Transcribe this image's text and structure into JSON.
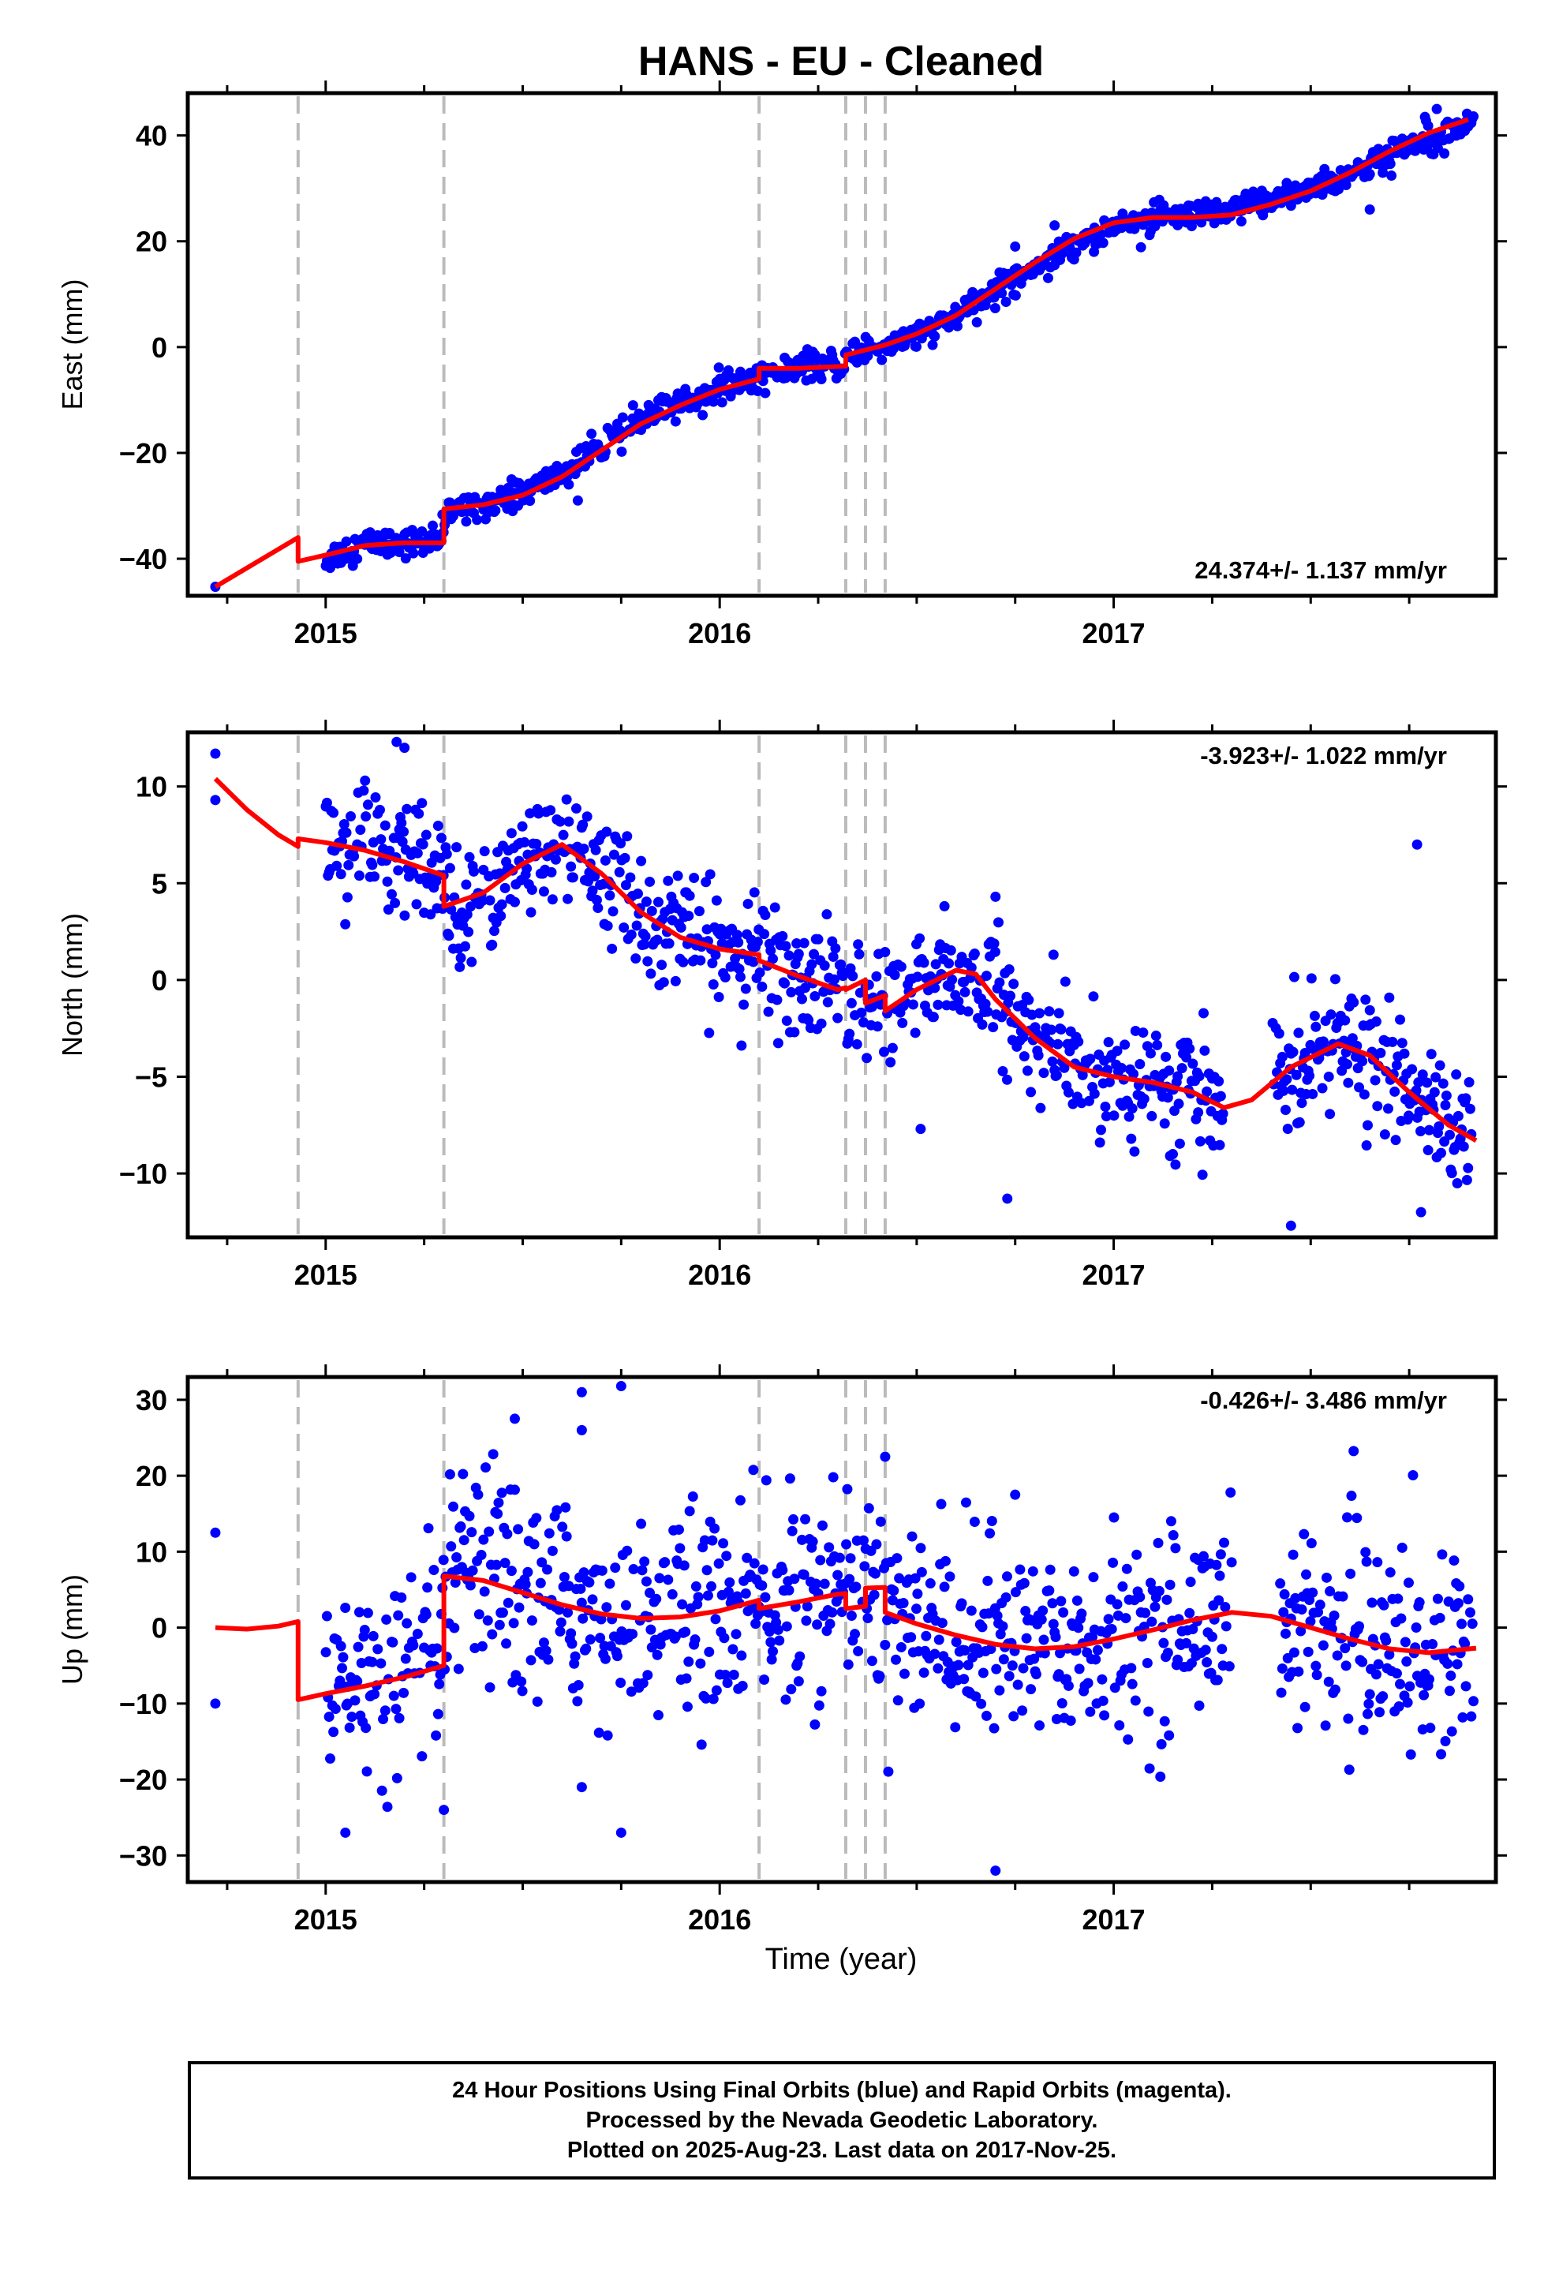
{
  "title": "HANS  - EU - Cleaned",
  "xlabel": "Time (year)",
  "footer": {
    "line1": "24 Hour Positions Using Final Orbits (blue) and Rapid Orbits (magenta).",
    "line2": "Processed by the Nevada Geodetic Laboratory.",
    "line3": "Plotted on 2025-Aug-23. Last data on 2017-Nov-25."
  },
  "colors": {
    "data": "#0000ff",
    "model": "#ff0000",
    "breaks": "#bbbbbb"
  },
  "chart_data": [
    {
      "type": "scatter",
      "component": "East",
      "ylabel": "East (mm)",
      "rate_label": "24.374+/- 1.137 mm/yr",
      "rate_position": "bottom-right",
      "xlim": [
        2014.65,
        2017.97
      ],
      "ylim": [
        -47,
        48
      ],
      "yticks": [
        -40,
        -20,
        0,
        20,
        40
      ],
      "xticks": [
        2015,
        2016,
        2017
      ],
      "breaks": [
        2014.93,
        2015.3,
        2016.1,
        2016.32,
        2016.37,
        2016.42
      ],
      "model": [
        [
          2014.72,
          -45.3
        ],
        [
          2014.93,
          -36.0
        ],
        [
          2014.93,
          -40.5
        ],
        [
          2015.0,
          -39.3
        ],
        [
          2015.1,
          -37.5
        ],
        [
          2015.2,
          -37.0
        ],
        [
          2015.3,
          -37.0
        ],
        [
          2015.3,
          -30.6
        ],
        [
          2015.4,
          -29.8
        ],
        [
          2015.5,
          -28.0
        ],
        [
          2015.6,
          -24.5
        ],
        [
          2015.7,
          -19.5
        ],
        [
          2015.8,
          -14.5
        ],
        [
          2015.9,
          -11.0
        ],
        [
          2016.0,
          -8.0
        ],
        [
          2016.1,
          -6.0
        ],
        [
          2016.1,
          -4.0
        ],
        [
          2016.2,
          -4.0
        ],
        [
          2016.32,
          -3.6
        ],
        [
          2016.32,
          -1.5
        ],
        [
          2016.42,
          0.4
        ],
        [
          2016.5,
          2.5
        ],
        [
          2016.6,
          6.0
        ],
        [
          2016.7,
          11.0
        ],
        [
          2016.8,
          16.0
        ],
        [
          2016.9,
          20.5
        ],
        [
          2017.0,
          23.5
        ],
        [
          2017.1,
          24.5
        ],
        [
          2017.2,
          24.5
        ],
        [
          2017.3,
          25.0
        ],
        [
          2017.4,
          27.0
        ],
        [
          2017.5,
          29.5
        ],
        [
          2017.6,
          33.0
        ],
        [
          2017.7,
          37.0
        ],
        [
          2017.8,
          40.5
        ],
        [
          2017.9,
          43.0
        ]
      ],
      "anchors": [
        [
          2014.72,
          -45.3
        ],
        [
          2015.0,
          -40.0
        ],
        [
          2015.1,
          -37.0
        ],
        [
          2015.2,
          -37.0
        ],
        [
          2015.29,
          -37.0
        ],
        [
          2015.31,
          -31.0
        ],
        [
          2015.4,
          -29.5
        ],
        [
          2015.5,
          -27.5
        ],
        [
          2015.6,
          -24.0
        ],
        [
          2015.7,
          -19.0
        ],
        [
          2015.8,
          -14.0
        ],
        [
          2015.9,
          -10.5
        ],
        [
          2016.0,
          -8.0
        ],
        [
          2016.1,
          -5.5
        ],
        [
          2016.2,
          -4.0
        ],
        [
          2016.3,
          -3.5
        ],
        [
          2016.35,
          -1.0
        ],
        [
          2016.45,
          1.0
        ],
        [
          2016.55,
          3.5
        ],
        [
          2016.65,
          8.0
        ],
        [
          2016.75,
          13.0
        ],
        [
          2016.85,
          17.5
        ],
        [
          2016.95,
          21.5
        ],
        [
          2017.05,
          24.0
        ],
        [
          2017.15,
          24.5
        ],
        [
          2017.25,
          24.5
        ],
        [
          2017.4,
          28.0
        ],
        [
          2017.5,
          30.0
        ],
        [
          2017.6,
          32.5
        ],
        [
          2017.7,
          36.0
        ],
        [
          2017.8,
          40.0
        ],
        [
          2017.9,
          42.5
        ]
      ],
      "gaps": [
        [
          2014.73,
          2015.0
        ]
      ],
      "scatter_sd": 1.3,
      "outliers": [
        [
          2017.82,
          45.0
        ],
        [
          2017.79,
          43.5
        ],
        [
          2017.65,
          26.0
        ],
        [
          2016.85,
          23.0
        ],
        [
          2016.72,
          14.0
        ],
        [
          2016.95,
          18.0
        ],
        [
          2015.64,
          -29.0
        ],
        [
          2015.78,
          -11.0
        ],
        [
          2016.75,
          19.0
        ]
      ]
    },
    {
      "type": "scatter",
      "component": "North",
      "ylabel": "North (mm)",
      "rate_label": "-3.923+/- 1.022 mm/yr",
      "rate_position": "top-right",
      "xlim": [
        2014.65,
        2017.97
      ],
      "ylim": [
        -13.3,
        12.8
      ],
      "yticks": [
        -10,
        -5,
        0,
        5,
        10
      ],
      "xticks": [
        2015,
        2016,
        2017
      ],
      "breaks": [
        2014.93,
        2015.3,
        2016.1,
        2016.32,
        2016.37,
        2016.42
      ],
      "model": [
        [
          2014.72,
          10.4
        ],
        [
          2014.8,
          8.8
        ],
        [
          2014.88,
          7.5
        ],
        [
          2014.93,
          6.9
        ],
        [
          2014.93,
          7.3
        ],
        [
          2015.0,
          7.1
        ],
        [
          2015.1,
          6.7
        ],
        [
          2015.2,
          6.1
        ],
        [
          2015.3,
          5.4
        ],
        [
          2015.3,
          3.8
        ],
        [
          2015.4,
          4.5
        ],
        [
          2015.5,
          6.0
        ],
        [
          2015.6,
          7.0
        ],
        [
          2015.7,
          5.5
        ],
        [
          2015.8,
          3.5
        ],
        [
          2015.9,
          2.2
        ],
        [
          2016.0,
          1.6
        ],
        [
          2016.1,
          1.3
        ],
        [
          2016.1,
          1.0
        ],
        [
          2016.2,
          0.2
        ],
        [
          2016.3,
          -0.5
        ],
        [
          2016.32,
          -0.4
        ],
        [
          2016.32,
          -0.5
        ],
        [
          2016.37,
          0.0
        ],
        [
          2016.37,
          -1.2
        ],
        [
          2016.42,
          -0.8
        ],
        [
          2016.42,
          -1.6
        ],
        [
          2016.5,
          -0.5
        ],
        [
          2016.6,
          0.5
        ],
        [
          2016.65,
          0.3
        ],
        [
          2016.7,
          -1.0
        ],
        [
          2016.8,
          -3.0
        ],
        [
          2016.9,
          -4.5
        ],
        [
          2017.0,
          -5.0
        ],
        [
          2017.1,
          -5.3
        ],
        [
          2017.2,
          -5.8
        ],
        [
          2017.28,
          -6.6
        ],
        [
          2017.35,
          -6.2
        ],
        [
          2017.45,
          -4.5
        ],
        [
          2017.57,
          -3.3
        ],
        [
          2017.65,
          -3.9
        ],
        [
          2017.75,
          -5.8
        ],
        [
          2017.85,
          -7.5
        ],
        [
          2017.92,
          -8.3
        ]
      ],
      "anchors": [
        [
          2014.72,
          11.7
        ],
        [
          2014.72,
          9.3
        ],
        [
          2015.0,
          7.3
        ],
        [
          2015.1,
          6.7
        ],
        [
          2015.2,
          6.1
        ],
        [
          2015.29,
          5.5
        ],
        [
          2015.31,
          3.8
        ],
        [
          2015.4,
          4.5
        ],
        [
          2015.5,
          6.0
        ],
        [
          2015.6,
          7.0
        ],
        [
          2015.7,
          5.5
        ],
        [
          2015.8,
          3.5
        ],
        [
          2015.9,
          2.2
        ],
        [
          2016.0,
          1.6
        ],
        [
          2016.1,
          1.1
        ],
        [
          2016.2,
          0.2
        ],
        [
          2016.3,
          -0.5
        ],
        [
          2016.4,
          -1.2
        ],
        [
          2016.5,
          -0.5
        ],
        [
          2016.6,
          0.5
        ],
        [
          2016.7,
          -1.0
        ],
        [
          2016.8,
          -3.0
        ],
        [
          2016.9,
          -4.5
        ],
        [
          2017.0,
          -5.0
        ],
        [
          2017.1,
          -5.3
        ],
        [
          2017.2,
          -5.8
        ],
        [
          2017.28,
          -6.6
        ],
        [
          2017.4,
          -5.0
        ],
        [
          2017.5,
          -3.8
        ],
        [
          2017.57,
          -3.3
        ],
        [
          2017.65,
          -3.9
        ],
        [
          2017.75,
          -5.8
        ],
        [
          2017.85,
          -7.5
        ],
        [
          2017.92,
          -8.3
        ]
      ],
      "gaps": [
        [
          2014.73,
          2015.0
        ],
        [
          2017.28,
          2017.4
        ]
      ],
      "scatter_sd": 1.5,
      "outliers": [
        [
          2015.18,
          12.3
        ],
        [
          2015.2,
          12.0
        ],
        [
          2015.1,
          10.3
        ],
        [
          2017.77,
          7.0
        ],
        [
          2016.73,
          -11.3
        ],
        [
          2016.51,
          -7.7
        ],
        [
          2017.78,
          -12.0
        ],
        [
          2017.45,
          -12.7
        ],
        [
          2017.15,
          -9.0
        ],
        [
          2016.7,
          4.3
        ]
      ]
    },
    {
      "type": "scatter",
      "component": "Up",
      "ylabel": "Up (mm)",
      "rate_label": "-0.426+/- 3.486 mm/yr",
      "rate_position": "top-right",
      "xlim": [
        2014.65,
        2017.97
      ],
      "ylim": [
        -33.5,
        33
      ],
      "yticks": [
        -30,
        -20,
        -10,
        0,
        10,
        20,
        30
      ],
      "xticks": [
        2015,
        2016,
        2017
      ],
      "breaks": [
        2014.93,
        2015.3,
        2016.1,
        2016.32,
        2016.37,
        2016.42
      ],
      "model": [
        [
          2014.72,
          0.0
        ],
        [
          2014.8,
          -0.2
        ],
        [
          2014.88,
          0.2
        ],
        [
          2014.93,
          0.8
        ],
        [
          2014.93,
          -9.5
        ],
        [
          2015.0,
          -8.7
        ],
        [
          2015.1,
          -7.7
        ],
        [
          2015.2,
          -6.5
        ],
        [
          2015.3,
          -5.0
        ],
        [
          2015.3,
          6.8
        ],
        [
          2015.4,
          6.2
        ],
        [
          2015.5,
          4.6
        ],
        [
          2015.6,
          3.0
        ],
        [
          2015.7,
          1.8
        ],
        [
          2015.8,
          1.2
        ],
        [
          2015.9,
          1.4
        ],
        [
          2016.0,
          2.2
        ],
        [
          2016.1,
          3.6
        ],
        [
          2016.1,
          2.5
        ],
        [
          2016.2,
          3.4
        ],
        [
          2016.3,
          4.4
        ],
        [
          2016.32,
          4.5
        ],
        [
          2016.32,
          2.5
        ],
        [
          2016.37,
          2.8
        ],
        [
          2016.37,
          5.2
        ],
        [
          2016.42,
          5.3
        ],
        [
          2016.42,
          2.0
        ],
        [
          2016.5,
          0.5
        ],
        [
          2016.6,
          -1.0
        ],
        [
          2016.7,
          -2.2
        ],
        [
          2016.8,
          -2.8
        ],
        [
          2016.9,
          -2.5
        ],
        [
          2017.0,
          -1.5
        ],
        [
          2017.1,
          -0.3
        ],
        [
          2017.2,
          1.0
        ],
        [
          2017.3,
          2.0
        ],
        [
          2017.4,
          1.5
        ],
        [
          2017.5,
          0.0
        ],
        [
          2017.6,
          -1.5
        ],
        [
          2017.7,
          -2.8
        ],
        [
          2017.8,
          -3.3
        ],
        [
          2017.92,
          -2.7
        ]
      ],
      "anchors": [
        [
          2014.72,
          12.5
        ],
        [
          2014.72,
          -10.0
        ],
        [
          2015.0,
          -8.7
        ],
        [
          2015.1,
          -7.7
        ],
        [
          2015.2,
          -6.5
        ],
        [
          2015.29,
          -5.0
        ],
        [
          2015.31,
          6.8
        ],
        [
          2015.4,
          6.2
        ],
        [
          2015.5,
          4.6
        ],
        [
          2015.6,
          3.0
        ],
        [
          2015.7,
          1.8
        ],
        [
          2015.8,
          1.2
        ],
        [
          2015.9,
          1.4
        ],
        [
          2016.0,
          2.2
        ],
        [
          2016.1,
          3.0
        ],
        [
          2016.2,
          3.4
        ],
        [
          2016.3,
          4.4
        ],
        [
          2016.4,
          4.0
        ],
        [
          2016.5,
          0.5
        ],
        [
          2016.6,
          -1.0
        ],
        [
          2016.7,
          -2.2
        ],
        [
          2016.8,
          -2.8
        ],
        [
          2016.9,
          -2.5
        ],
        [
          2017.0,
          -1.5
        ],
        [
          2017.1,
          -0.3
        ],
        [
          2017.2,
          1.0
        ],
        [
          2017.3,
          2.0
        ],
        [
          2017.4,
          1.5
        ],
        [
          2017.5,
          0.0
        ],
        [
          2017.6,
          -1.5
        ],
        [
          2017.7,
          -2.8
        ],
        [
          2017.8,
          -3.3
        ],
        [
          2017.92,
          -2.7
        ]
      ],
      "gaps": [
        [
          2014.73,
          2015.0
        ],
        [
          2017.3,
          2017.42
        ]
      ],
      "scatter_sd": 6.5,
      "outliers": [
        [
          2015.65,
          31.0
        ],
        [
          2015.75,
          31.8
        ],
        [
          2015.48,
          27.5
        ],
        [
          2015.65,
          26.0
        ],
        [
          2016.7,
          -32.0
        ],
        [
          2015.05,
          -27.0
        ],
        [
          2015.75,
          -27.0
        ],
        [
          2015.65,
          -21.0
        ],
        [
          2016.75,
          17.5
        ],
        [
          2016.42,
          22.5
        ],
        [
          2015.3,
          -24.0
        ]
      ]
    }
  ]
}
